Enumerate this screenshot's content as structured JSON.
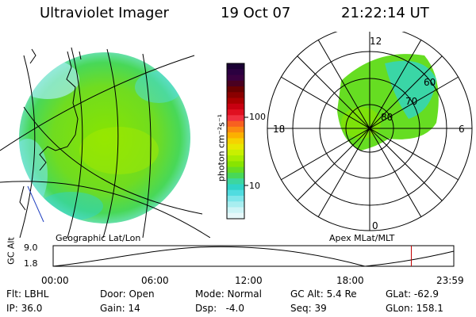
{
  "header": {
    "title": "Ultraviolet Imager",
    "date": "19 Oct 07",
    "time": "21:22:14 UT"
  },
  "colorbar": {
    "label": "photon cm⁻²s⁻¹",
    "ticks": [
      "100",
      "10"
    ],
    "colors": [
      "#1a0033",
      "#2b0040",
      "#3a0040",
      "#4a0020",
      "#6a0000",
      "#8a0000",
      "#aa0000",
      "#c80010",
      "#e01020",
      "#f03040",
      "#f86020",
      "#fb8a10",
      "#fcb000",
      "#f6d200",
      "#e8e800",
      "#c8f000",
      "#a8ec00",
      "#88e400",
      "#66dd22",
      "#48d858",
      "#3cd6a0",
      "#30d4c8",
      "#50dce0",
      "#7ee6ea",
      "#a8eef0",
      "#cdf4f6",
      "#e6f8fa"
    ]
  },
  "left_panel": {
    "caption": "Geographic Lat/Lon"
  },
  "right_panel": {
    "caption": "Apex MLat/MLT",
    "mlt_labels": {
      "top": "12",
      "left": "18",
      "right": "6",
      "bottom": "0"
    },
    "mlat_labels": [
      "60",
      "70",
      "80"
    ]
  },
  "timeline": {
    "ylabel": "GC Alt",
    "yticks": [
      "9.0",
      "1.8"
    ],
    "xticks": [
      "00:00",
      "06:00",
      "12:00",
      "18:00",
      "23:59"
    ],
    "current_time_fraction": 0.894
  },
  "info": {
    "flt": "Flt: LBHL",
    "ip": "IP: 36.0",
    "door": "Door: Open",
    "gain": "Gain: 14",
    "mode": "Mode: Normal",
    "dsp": "Dsp:   -4.0",
    "gcalt": "GC Alt: 5.4 Re",
    "seq": "Seq: 39",
    "glat": "GLat: -62.9",
    "glon": "GLon: 158.1"
  }
}
